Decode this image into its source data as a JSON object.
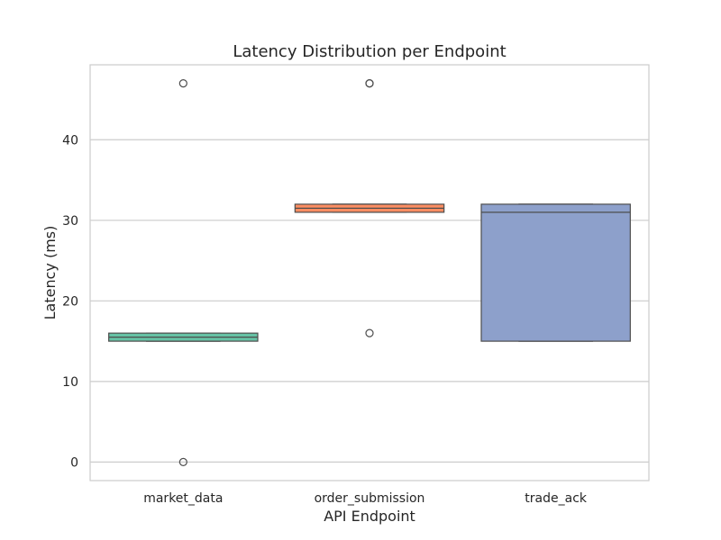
{
  "chart_data": {
    "type": "box",
    "title": "Latency Distribution per Endpoint",
    "xlabel": "API Endpoint",
    "ylabel": "Latency (ms)",
    "ylim": [
      -2.3,
      49.3
    ],
    "yticks": [
      0,
      10,
      20,
      30,
      40
    ],
    "grid": "horizontal",
    "legend": "none",
    "categories": [
      "market_data",
      "order_submission",
      "trade_ack"
    ],
    "boxes": [
      {
        "category": "market_data",
        "q1": 15,
        "median": 15.5,
        "q3": 16,
        "whisker_low": 15,
        "whisker_high": 16,
        "outliers": [
          47,
          0
        ],
        "color": "#66c2a5"
      },
      {
        "category": "order_submission",
        "q1": 31,
        "median": 31.5,
        "q3": 32,
        "whisker_low": 31,
        "whisker_high": 32,
        "outliers": [
          47,
          47,
          16
        ],
        "color": "#fc8d62"
      },
      {
        "category": "trade_ack",
        "q1": 15,
        "median": 31,
        "q3": 32,
        "whisker_low": 15,
        "whisker_high": 32,
        "outliers": [],
        "color": "#8da0cb"
      }
    ]
  }
}
